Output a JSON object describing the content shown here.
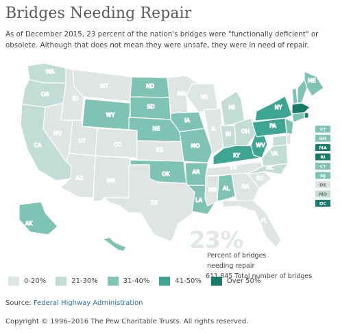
{
  "header": {
    "title": "Bridges Needing Repair",
    "intro": "As of December 2015, 23 percent of the nation's bridges were \"functionally deficient\" or obsolete. Although that does not mean they were unsafe, they were in need of repair."
  },
  "summary": {
    "big_percent": "23%",
    "caption_line1": "Percent of bridges needing repair",
    "caption_line2": "611,845 Total number of bridges"
  },
  "legend": [
    {
      "label": "0-20%",
      "color": "#dfe5e3"
    },
    {
      "label": "21-30%",
      "color": "#c2dcd6"
    },
    {
      "label": "31-40%",
      "color": "#7fc3b4"
    },
    {
      "label": "41-50%",
      "color": "#3ea593"
    },
    {
      "label": "Over 50%",
      "color": "#1a7a68"
    }
  ],
  "map": {
    "states": [
      {
        "abbr": "WA",
        "cls": 2
      },
      {
        "abbr": "OR",
        "cls": 2
      },
      {
        "abbr": "CA",
        "cls": 2
      },
      {
        "abbr": "ID",
        "cls": 1
      },
      {
        "abbr": "NV",
        "cls": 1
      },
      {
        "abbr": "MT",
        "cls": 1
      },
      {
        "abbr": "WY",
        "cls": 3
      },
      {
        "abbr": "UT",
        "cls": 1
      },
      {
        "abbr": "AZ",
        "cls": 1
      },
      {
        "abbr": "CO",
        "cls": 1
      },
      {
        "abbr": "NM",
        "cls": 1
      },
      {
        "abbr": "ND",
        "cls": 3
      },
      {
        "abbr": "SD",
        "cls": 3
      },
      {
        "abbr": "NE",
        "cls": 3
      },
      {
        "abbr": "KS",
        "cls": 1
      },
      {
        "abbr": "OK",
        "cls": 3
      },
      {
        "abbr": "TX",
        "cls": 1
      },
      {
        "abbr": "MN",
        "cls": 1
      },
      {
        "abbr": "IA",
        "cls": 3
      },
      {
        "abbr": "MO",
        "cls": 3
      },
      {
        "abbr": "AR",
        "cls": 3
      },
      {
        "abbr": "LA",
        "cls": 3
      },
      {
        "abbr": "WI",
        "cls": 1
      },
      {
        "abbr": "IL",
        "cls": 1
      },
      {
        "abbr": "MI",
        "cls": 2
      },
      {
        "abbr": "IN",
        "cls": 2
      },
      {
        "abbr": "OH",
        "cls": 2
      },
      {
        "abbr": "KY",
        "cls": 4
      },
      {
        "abbr": "TN",
        "cls": 1
      },
      {
        "abbr": "MS",
        "cls": 1
      },
      {
        "abbr": "AL",
        "cls": 3
      },
      {
        "abbr": "GA",
        "cls": 1
      },
      {
        "abbr": "FL",
        "cls": 1
      },
      {
        "abbr": "SC",
        "cls": 1
      },
      {
        "abbr": "NC",
        "cls": 2
      },
      {
        "abbr": "VA",
        "cls": 2
      },
      {
        "abbr": "WV",
        "cls": 4
      },
      {
        "abbr": "PA",
        "cls": 4
      },
      {
        "abbr": "NY",
        "cls": 4
      },
      {
        "abbr": "ME",
        "cls": 3
      },
      {
        "abbr": "AK",
        "cls": 3
      },
      {
        "abbr": "HI",
        "cls": 3
      }
    ],
    "east_boxes": [
      {
        "abbr": "VT",
        "cls": 3
      },
      {
        "abbr": "NH",
        "cls": 3
      },
      {
        "abbr": "MA",
        "cls": 5
      },
      {
        "abbr": "RI",
        "cls": 5
      },
      {
        "abbr": "CT",
        "cls": 3
      },
      {
        "abbr": "NJ",
        "cls": 3
      },
      {
        "abbr": "DE",
        "cls": 1
      },
      {
        "abbr": "MD",
        "cls": 2
      },
      {
        "abbr": "DC",
        "cls": 5
      }
    ]
  },
  "footer": {
    "source_prefix": "Source: ",
    "source_link": "Federal Highway Administration",
    "copyright": "Copyright © 1996–2016 The Pew Charitable Trusts. All rights reserved."
  }
}
